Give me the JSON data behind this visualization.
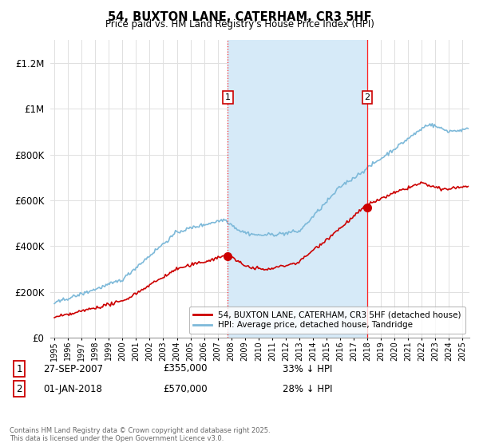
{
  "title": "54, BUXTON LANE, CATERHAM, CR3 5HF",
  "subtitle": "Price paid vs. HM Land Registry's House Price Index (HPI)",
  "ylim": [
    0,
    1300000
  ],
  "yticks": [
    0,
    200000,
    400000,
    600000,
    800000,
    1000000,
    1200000
  ],
  "ytick_labels": [
    "£0",
    "£200K",
    "£400K",
    "£600K",
    "£800K",
    "£1M",
    "£1.2M"
  ],
  "xlim_start": 1994.7,
  "xlim_end": 2025.5,
  "purchase1_x": 2007.74,
  "purchase1_y": 355000,
  "purchase2_x": 2018.0,
  "purchase2_y": 570000,
  "shaded_region_start": 2007.74,
  "shaded_region_end": 2018.0,
  "line_color_hpi": "#7db9d9",
  "line_color_price": "#cc0000",
  "shaded_color": "#d6eaf8",
  "vline_color": "#ff2222",
  "legend_label_price": "54, BUXTON LANE, CATERHAM, CR3 5HF (detached house)",
  "legend_label_hpi": "HPI: Average price, detached house, Tandridge",
  "purchase1_date": "27-SEP-2007",
  "purchase1_price": "£355,000",
  "purchase1_hpi": "33% ↓ HPI",
  "purchase2_date": "01-JAN-2018",
  "purchase2_price": "£570,000",
  "purchase2_hpi": "28% ↓ HPI",
  "footer": "Contains HM Land Registry data © Crown copyright and database right 2025.\nThis data is licensed under the Open Government Licence v3.0.",
  "background_color": "#ffffff",
  "grid_color": "#e0e0e0"
}
